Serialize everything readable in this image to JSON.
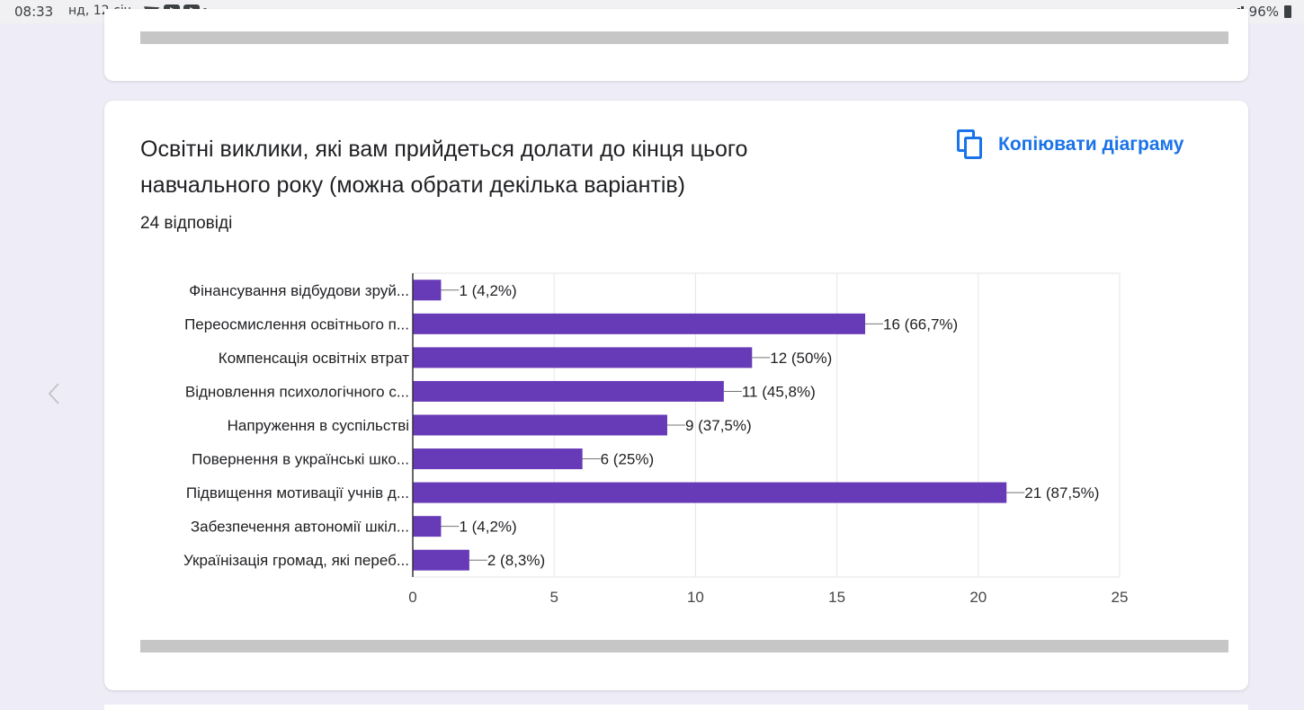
{
  "status_bar": {
    "time": "08:33",
    "date": "нд, 12 січ.",
    "battery": "96%"
  },
  "question": {
    "title": "Освітні виклики, які вам прийдеться долати до кінця цього навчального року (можна обрати декілька варіантів)",
    "responses": "24 відповіді",
    "copy_label": "Копіювати діаграму"
  },
  "colors": {
    "bar": "#673ab7",
    "accent": "#1a73e8",
    "background": "#eeecf6"
  },
  "icons": [
    "copy-icon",
    "chevron-left-icon",
    "telegram-icon",
    "youtube-icon",
    "signal-icon",
    "battery-icon"
  ],
  "chart_data": {
    "type": "bar",
    "orientation": "horizontal",
    "categories": [
      "Фінансування відбудови зруй...",
      "Переосмислення освітнього п...",
      "Компенсація освітніх втрат",
      "Відновлення психологічного с...",
      "Напруження в суспільстві",
      "Повернення в українські шко...",
      "Підвищення мотивації учнів д...",
      "Забезпечення автономії шкіл...",
      "Українізація громад, які переб..."
    ],
    "values": [
      1,
      16,
      12,
      11,
      9,
      6,
      21,
      1,
      2
    ],
    "value_labels": [
      "1 (4,2%)",
      "16 (66,7%)",
      "12 (50%)",
      "11 (45,8%)",
      "9 (37,5%)",
      "6 (25%)",
      "21 (87,5%)",
      "1 (4,2%)",
      "2 (8,3%)"
    ],
    "x_ticks": [
      0,
      5,
      10,
      15,
      20,
      25
    ],
    "xlim": [
      0,
      25
    ],
    "grid": "vertical",
    "title": "",
    "xlabel": "",
    "ylabel": ""
  }
}
